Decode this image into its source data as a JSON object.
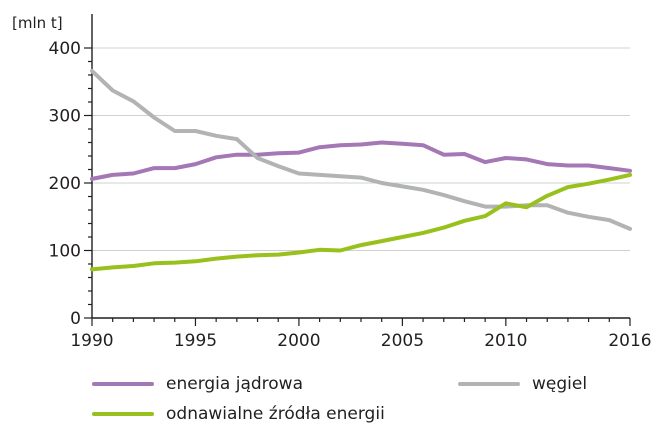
{
  "chart_data": {
    "type": "line",
    "title": "",
    "xlabel": "",
    "ylabel": "[mln t]",
    "xlim": [
      1990,
      2016
    ],
    "ylim": [
      0,
      400
    ],
    "grid": true,
    "legend_position": "bottom",
    "x_ticks": [
      "1990",
      "1995",
      "2000",
      "2005",
      "2010",
      "2016"
    ],
    "y_ticks": [
      "0",
      "100",
      "200",
      "300",
      "400"
    ],
    "x": [
      1990,
      1991,
      1992,
      1993,
      1994,
      1995,
      1996,
      1997,
      1998,
      1999,
      2000,
      2001,
      2002,
      2003,
      2004,
      2005,
      2006,
      2007,
      2008,
      2009,
      2010,
      2011,
      2012,
      2013,
      2014,
      2015,
      2016
    ],
    "series": [
      {
        "name": "energia jądrowa",
        "color": "#a477b5",
        "values": [
          206,
          212,
          214,
          222,
          222,
          228,
          238,
          242,
          242,
          244,
          245,
          253,
          256,
          257,
          260,
          258,
          256,
          242,
          243,
          231,
          237,
          235,
          228,
          226,
          226,
          222,
          218
        ]
      },
      {
        "name": "węgiel",
        "color": "#b1b3b4",
        "values": [
          366,
          337,
          321,
          297,
          277,
          277,
          270,
          265,
          237,
          225,
          214,
          212,
          210,
          208,
          200,
          195,
          190,
          182,
          173,
          165,
          165,
          167,
          167,
          156,
          150,
          145,
          132
        ]
      },
      {
        "name": "odnawialne źródła energii",
        "color": "#98c11e",
        "values": [
          72,
          75,
          77,
          81,
          82,
          84,
          88,
          91,
          93,
          94,
          97,
          101,
          100,
          108,
          114,
          120,
          126,
          134,
          144,
          151,
          170,
          164,
          181,
          194,
          199,
          205,
          212
        ]
      }
    ]
  }
}
